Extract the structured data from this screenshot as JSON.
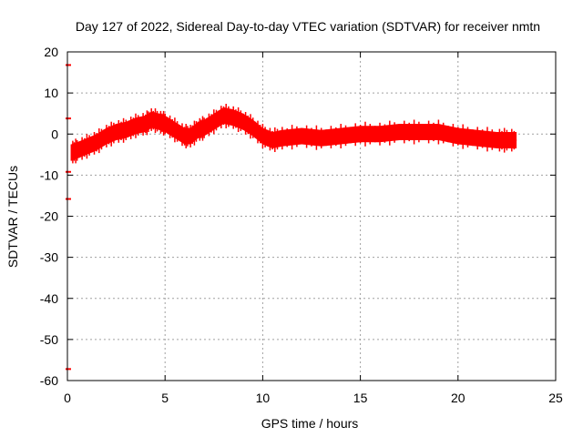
{
  "chart_data": {
    "type": "line",
    "title": "Day 127 of 2022, Sidereal Day-to-day VTEC variation (SDTVAR) for receiver nmtn",
    "xlabel": "GPS time / hours",
    "ylabel": "SDTVAR / TECUs",
    "xlim": [
      0,
      25
    ],
    "ylim": [
      -60,
      20
    ],
    "xticks": [
      "0",
      "5",
      "10",
      "15",
      "20",
      "25"
    ],
    "yticks": [
      "20",
      "10",
      "0",
      "-10",
      "-20",
      "-30",
      "-40",
      "-50",
      "-60"
    ],
    "grid": true,
    "legend": "none",
    "colors": {
      "series": "#ff0000",
      "axis": "#000000",
      "grid": "#a0a0a0",
      "background": "#ffffff"
    },
    "series": [
      {
        "name": "SDTVAR",
        "band_width": 2,
        "x": [
          0.2,
          0.5,
          1.0,
          1.5,
          2.0,
          2.5,
          3.0,
          3.5,
          4.0,
          4.3,
          4.7,
          5.0,
          5.5,
          6.0,
          6.3,
          6.7,
          7.0,
          7.5,
          8.0,
          8.5,
          9.0,
          9.5,
          10.0,
          10.5,
          11.0,
          12.0,
          13.0,
          14.0,
          15.0,
          16.0,
          17.0,
          18.0,
          19.0,
          20.0,
          21.0,
          22.0,
          22.5,
          23.0
        ],
        "y": [
          -4.5,
          -4.0,
          -3.0,
          -2.0,
          -0.5,
          0.5,
          1.0,
          2.0,
          2.5,
          3.5,
          3.0,
          2.5,
          1.0,
          -0.5,
          -0.5,
          1.0,
          1.5,
          3.0,
          4.5,
          4.0,
          3.0,
          1.5,
          -0.5,
          -1.5,
          -1.0,
          -0.5,
          -1.0,
          -0.5,
          0.0,
          0.0,
          0.5,
          0.5,
          0.5,
          -0.5,
          -1.0,
          -1.5,
          -1.5,
          -1.5
        ]
      }
    ],
    "outliers": [
      {
        "x": 0.0,
        "y": 16.8
      },
      {
        "x": 0.0,
        "y": 3.8
      },
      {
        "x": 0.0,
        "y": -9.2
      },
      {
        "x": 0.0,
        "y": -15.8
      },
      {
        "x": 0.0,
        "y": -57.2
      }
    ]
  }
}
